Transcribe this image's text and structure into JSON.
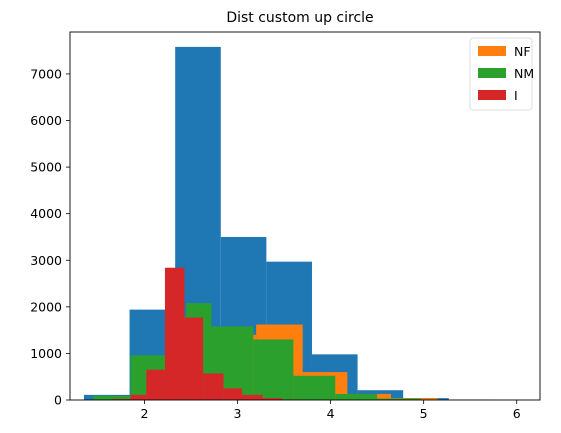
{
  "chart_data": {
    "type": "histogram",
    "title": "Dist custom up circle",
    "xlabel": "",
    "ylabel": "",
    "xlim": [
      1.2,
      6.25
    ],
    "ylim": [
      0,
      7900
    ],
    "xticks": [
      2,
      3,
      4,
      5,
      6
    ],
    "yticks": [
      0,
      1000,
      2000,
      3000,
      4000,
      5000,
      6000,
      7000
    ],
    "legend": {
      "placement": "top-right",
      "entries": [
        "NF",
        "NM",
        "I"
      ]
    },
    "grid": false,
    "series": [
      {
        "color": "#1f77b4",
        "bins": [
          {
            "x0": 1.35,
            "x1": 1.84,
            "y": 110
          },
          {
            "x0": 1.84,
            "x1": 2.33,
            "y": 1940
          },
          {
            "x0": 2.33,
            "x1": 2.82,
            "y": 7580
          },
          {
            "x0": 2.82,
            "x1": 3.31,
            "y": 3500
          },
          {
            "x0": 3.31,
            "x1": 3.8,
            "y": 2970
          },
          {
            "x0": 3.8,
            "x1": 4.29,
            "y": 980
          },
          {
            "x0": 4.29,
            "x1": 4.78,
            "y": 210
          },
          {
            "x0": 4.78,
            "x1": 5.27,
            "y": 40
          },
          {
            "x0": 5.27,
            "x1": 5.76,
            "y": 10
          },
          {
            "x0": 5.76,
            "x1": 6.25,
            "y": 5
          }
        ]
      },
      {
        "name": "NF",
        "color": "#ff7f0e",
        "bins": [
          {
            "x0": 2.3,
            "x1": 2.6,
            "y": 900
          },
          {
            "x0": 2.6,
            "x1": 2.9,
            "y": 1200
          },
          {
            "x0": 2.9,
            "x1": 3.2,
            "y": 1400
          },
          {
            "x0": 3.2,
            "x1": 3.7,
            "y": 1620
          },
          {
            "x0": 3.7,
            "x1": 4.18,
            "y": 600
          },
          {
            "x0": 4.18,
            "x1": 4.65,
            "y": 130
          },
          {
            "x0": 4.65,
            "x1": 5.15,
            "y": 40
          }
        ]
      },
      {
        "name": "NM",
        "color": "#2ca02c",
        "bins": [
          {
            "x0": 1.45,
            "x1": 1.85,
            "y": 90
          },
          {
            "x0": 1.85,
            "x1": 2.25,
            "y": 960
          },
          {
            "x0": 2.25,
            "x1": 2.45,
            "y": 1800
          },
          {
            "x0": 2.45,
            "x1": 2.72,
            "y": 2080
          },
          {
            "x0": 2.72,
            "x1": 3.17,
            "y": 1580
          },
          {
            "x0": 3.17,
            "x1": 3.6,
            "y": 1300
          },
          {
            "x0": 3.6,
            "x1": 4.05,
            "y": 520
          },
          {
            "x0": 4.05,
            "x1": 4.5,
            "y": 130
          },
          {
            "x0": 4.5,
            "x1": 4.97,
            "y": 30
          },
          {
            "x0": 4.97,
            "x1": 5.3,
            "y": 10
          }
        ]
      },
      {
        "name": "I",
        "color": "#d62728",
        "bins": [
          {
            "x0": 1.65,
            "x1": 1.85,
            "y": 20
          },
          {
            "x0": 1.85,
            "x1": 2.02,
            "y": 110
          },
          {
            "x0": 2.02,
            "x1": 2.22,
            "y": 650
          },
          {
            "x0": 2.22,
            "x1": 2.43,
            "y": 2840
          },
          {
            "x0": 2.43,
            "x1": 2.63,
            "y": 1770
          },
          {
            "x0": 2.63,
            "x1": 2.85,
            "y": 570
          },
          {
            "x0": 2.85,
            "x1": 3.05,
            "y": 250
          },
          {
            "x0": 3.05,
            "x1": 3.27,
            "y": 110
          },
          {
            "x0": 3.27,
            "x1": 3.48,
            "y": 40
          },
          {
            "x0": 3.48,
            "x1": 3.7,
            "y": 10
          }
        ]
      }
    ]
  }
}
